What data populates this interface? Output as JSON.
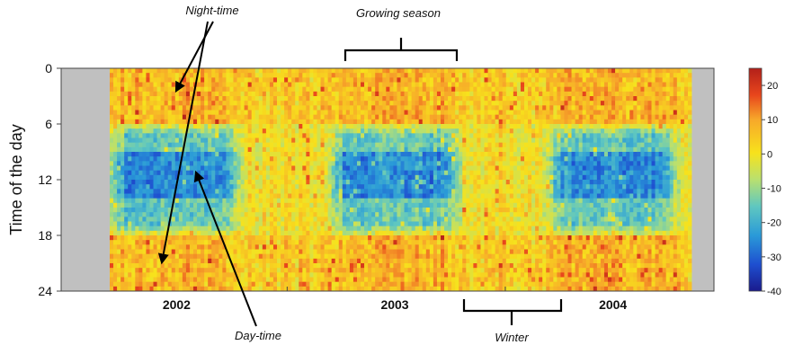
{
  "chart_data": {
    "type": "heatmap",
    "ylabel": "Time of the day",
    "y_ticks": [
      "0",
      "6",
      "12",
      "18",
      "24"
    ],
    "ylim": [
      0,
      24
    ],
    "y_reversed": true,
    "x_ticks": [
      "2002",
      "2003",
      "2004"
    ],
    "colorbar": {
      "ticks": [
        "20",
        "10",
        "0",
        "-10",
        "-20",
        "-30",
        "-40"
      ],
      "range": [
        -40,
        25
      ],
      "colors": [
        "#1a1a8c",
        "#1e4fd0",
        "#2a9ad8",
        "#5fc7c0",
        "#b8e070",
        "#f7e21c",
        "#f7a82a",
        "#e8461c",
        "#b3201a"
      ]
    },
    "no_data_color": "#c0c0c0",
    "pattern": {
      "night_value": 6,
      "day_value_growing_season": -25,
      "day_value_winter": 0,
      "growing_season_day_hours": [
        6,
        18
      ],
      "core_hours": [
        9,
        14
      ]
    },
    "annotations": {
      "night": "Night-time",
      "day": "Day-time",
      "growing": "Growing season",
      "winter": "Winter"
    }
  }
}
